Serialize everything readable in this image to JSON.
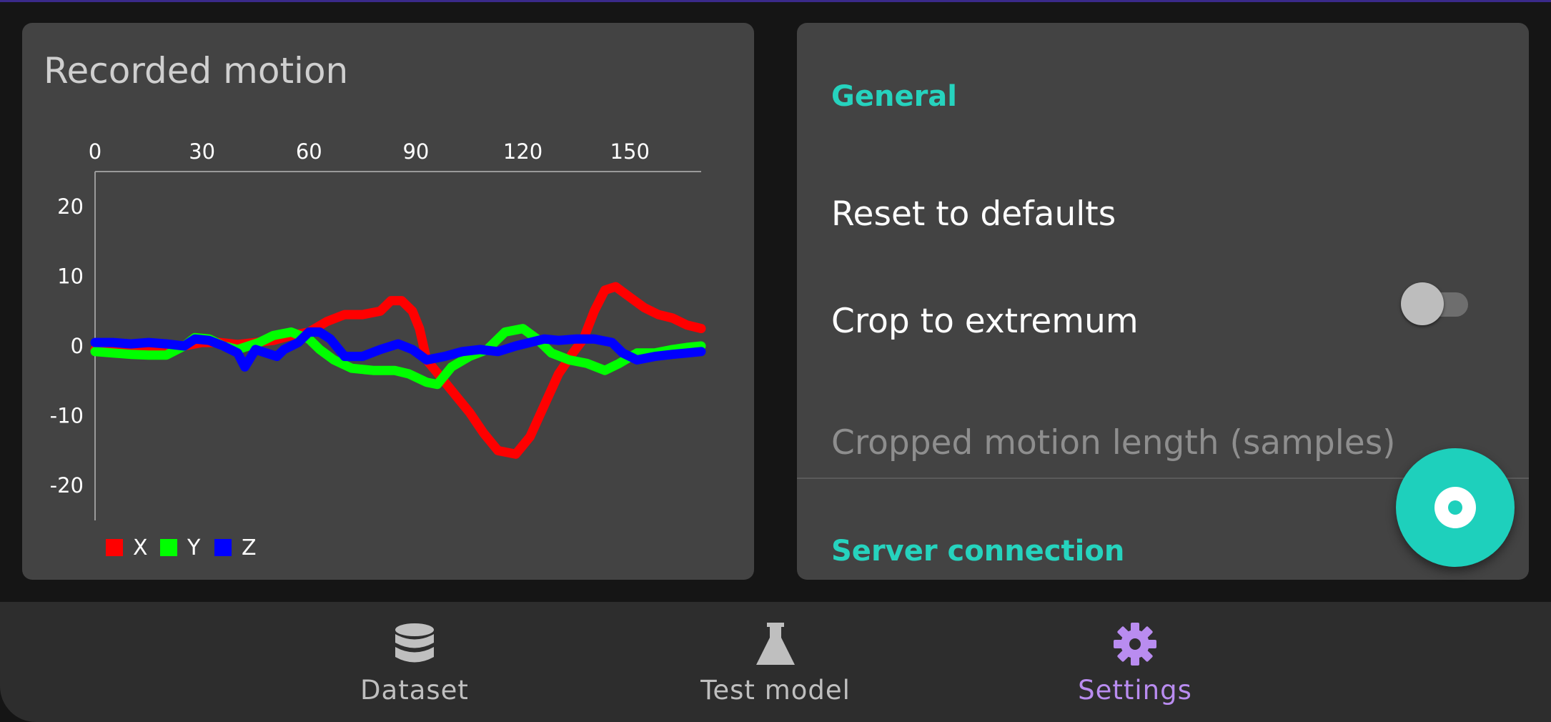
{
  "chart_card": {
    "title": "Recorded motion"
  },
  "chart_data": {
    "type": "line",
    "x_ticks": [
      "0",
      "30",
      "60",
      "90",
      "120",
      "150"
    ],
    "y_ticks": [
      "20",
      "10",
      "0",
      "-10",
      "-20"
    ],
    "xlim": [
      0,
      170
    ],
    "ylim": [
      -25,
      25
    ],
    "x_axis_position": "top",
    "grid": false,
    "legend": "bottom-left",
    "series": [
      {
        "name": "X",
        "color": "#ff0000",
        "points": [
          [
            0,
            -0.5
          ],
          [
            5,
            -0.8
          ],
          [
            10,
            -1
          ],
          [
            15,
            -0.8
          ],
          [
            20,
            -0.5
          ],
          [
            25,
            0
          ],
          [
            30,
            0.5
          ],
          [
            35,
            0.5
          ],
          [
            40,
            0.2
          ],
          [
            45,
            0.5
          ],
          [
            50,
            0.8
          ],
          [
            55,
            1.5
          ],
          [
            60,
            2
          ],
          [
            65,
            3.5
          ],
          [
            70,
            4.5
          ],
          [
            75,
            4.5
          ],
          [
            80,
            5
          ],
          [
            83,
            6.5
          ],
          [
            86,
            6.5
          ],
          [
            89,
            5
          ],
          [
            91,
            2.5
          ],
          [
            93,
            -2
          ],
          [
            97,
            -4.5
          ],
          [
            101,
            -7
          ],
          [
            105,
            -9.5
          ],
          [
            109,
            -12.5
          ],
          [
            113,
            -15
          ],
          [
            118,
            -15.5
          ],
          [
            122,
            -13
          ],
          [
            126,
            -8.5
          ],
          [
            130,
            -4
          ],
          [
            134,
            -1
          ],
          [
            137,
            1
          ],
          [
            140,
            5
          ],
          [
            143,
            8
          ],
          [
            146,
            8.5
          ],
          [
            150,
            7
          ],
          [
            154,
            5.5
          ],
          [
            158,
            4.5
          ],
          [
            162,
            4
          ],
          [
            166,
            3
          ],
          [
            170,
            2.5
          ]
        ]
      },
      {
        "name": "Y",
        "color": "#00ff00",
        "points": [
          [
            0,
            -0.8
          ],
          [
            5,
            -1
          ],
          [
            10,
            -1.2
          ],
          [
            15,
            -1.3
          ],
          [
            20,
            -1.3
          ],
          [
            25,
            0
          ],
          [
            28,
            1.2
          ],
          [
            32,
            1
          ],
          [
            36,
            0
          ],
          [
            40,
            -0.5
          ],
          [
            43,
            0
          ],
          [
            46,
            0.5
          ],
          [
            50,
            1.5
          ],
          [
            55,
            2
          ],
          [
            60,
            1
          ],
          [
            63,
            -0.5
          ],
          [
            67,
            -2
          ],
          [
            72,
            -3.2
          ],
          [
            78,
            -3.5
          ],
          [
            84,
            -3.5
          ],
          [
            88,
            -4
          ],
          [
            93,
            -5.2
          ],
          [
            96,
            -5.5
          ],
          [
            100,
            -3
          ],
          [
            105,
            -1.5
          ],
          [
            110,
            -0.5
          ],
          [
            115,
            2
          ],
          [
            120,
            2.5
          ],
          [
            124,
            1
          ],
          [
            128,
            -1
          ],
          [
            133,
            -2
          ],
          [
            138,
            -2.5
          ],
          [
            143,
            -3.5
          ],
          [
            147,
            -2.5
          ],
          [
            152,
            -1
          ],
          [
            157,
            -1
          ],
          [
            162,
            -0.5
          ],
          [
            166,
            -0.2
          ],
          [
            170,
            0
          ]
        ]
      },
      {
        "name": "Z",
        "color": "#0000ff",
        "points": [
          [
            0,
            0.5
          ],
          [
            5,
            0.5
          ],
          [
            10,
            0.3
          ],
          [
            15,
            0.5
          ],
          [
            20,
            0.3
          ],
          [
            25,
            0
          ],
          [
            28,
            1
          ],
          [
            32,
            0.8
          ],
          [
            36,
            0
          ],
          [
            40,
            -1
          ],
          [
            42,
            -3
          ],
          [
            45,
            -0.5
          ],
          [
            48,
            -1
          ],
          [
            51,
            -1.5
          ],
          [
            53,
            -0.5
          ],
          [
            55,
            0
          ],
          [
            57,
            0.5
          ],
          [
            60,
            2
          ],
          [
            63,
            2
          ],
          [
            66,
            1
          ],
          [
            70,
            -1.5
          ],
          [
            75,
            -1.5
          ],
          [
            80,
            -0.5
          ],
          [
            85,
            0.3
          ],
          [
            89,
            -0.5
          ],
          [
            93,
            -2
          ],
          [
            98,
            -1.5
          ],
          [
            103,
            -0.8
          ],
          [
            108,
            -0.5
          ],
          [
            113,
            -0.8
          ],
          [
            118,
            0
          ],
          [
            122,
            0.5
          ],
          [
            126,
            1
          ],
          [
            130,
            0.8
          ],
          [
            135,
            1
          ],
          [
            140,
            1
          ],
          [
            145,
            0.5
          ],
          [
            148,
            -1
          ],
          [
            152,
            -2
          ],
          [
            157,
            -1.5
          ],
          [
            162,
            -1.2
          ],
          [
            166,
            -1
          ],
          [
            170,
            -0.8
          ]
        ]
      }
    ]
  },
  "settings": {
    "general_header": "General",
    "reset_label": "Reset to defaults",
    "crop_label": "Crop to extremum",
    "crop_enabled": false,
    "cropped_length_label": "Cropped motion length (samples)",
    "server_header": "Server connection"
  },
  "fab": {
    "icon": "record-icon",
    "color": "#1ed0bc"
  },
  "nav": {
    "items": [
      {
        "label": "Dataset",
        "icon": "database-icon",
        "active": false
      },
      {
        "label": "Test model",
        "icon": "flask-icon",
        "active": false
      },
      {
        "label": "Settings",
        "icon": "gear-icon",
        "active": true
      }
    ],
    "active_color": "#b98cf0"
  }
}
